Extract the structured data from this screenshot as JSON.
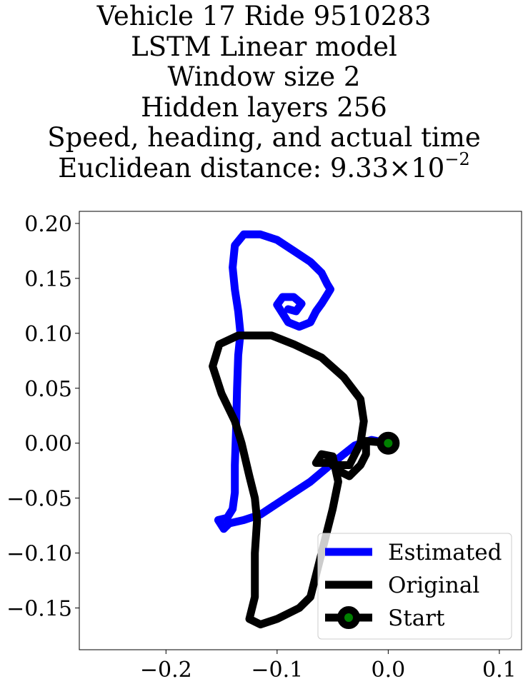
{
  "chart_data": {
    "type": "line",
    "title_lines": [
      "Vehicle 17 Ride 9510283",
      "LSTM Linear model",
      "Window size 2",
      "Hidden layers 256",
      "Speed, heading, and actual time"
    ],
    "title_metric_prefix": "Euclidean distance: ",
    "title_metric_mantissa": "9.33",
    "title_metric_times": "×",
    "title_metric_base": "10",
    "title_metric_exponent": "−2",
    "xlim": [
      -0.278,
      0.12
    ],
    "ylim": [
      -0.188,
      0.211
    ],
    "grid": false,
    "legend_position": "lower right",
    "x_ticks": [
      {
        "value": -0.2,
        "label": "−0.2"
      },
      {
        "value": -0.1,
        "label": "−0.1"
      },
      {
        "value": 0.0,
        "label": "0.0"
      },
      {
        "value": 0.1,
        "label": "0.1"
      }
    ],
    "y_ticks": [
      {
        "value": 0.2,
        "label": "0.20"
      },
      {
        "value": 0.15,
        "label": "0.15"
      },
      {
        "value": 0.1,
        "label": "0.10"
      },
      {
        "value": 0.05,
        "label": "0.05"
      },
      {
        "value": 0.0,
        "label": "0.00"
      },
      {
        "value": -0.05,
        "label": "−0.05"
      },
      {
        "value": -0.1,
        "label": "−0.10"
      },
      {
        "value": -0.15,
        "label": "−0.15"
      }
    ],
    "series": [
      {
        "name": "Estimated",
        "color": "#0000ff",
        "points": [
          [
            0.0,
            0.0
          ],
          [
            -0.015,
            0.003
          ],
          [
            -0.03,
            -0.002
          ],
          [
            -0.05,
            -0.018
          ],
          [
            -0.07,
            -0.035
          ],
          [
            -0.085,
            -0.045
          ],
          [
            -0.1,
            -0.055
          ],
          [
            -0.115,
            -0.065
          ],
          [
            -0.13,
            -0.07
          ],
          [
            -0.143,
            -0.073
          ],
          [
            -0.148,
            -0.078
          ],
          [
            -0.153,
            -0.07
          ],
          [
            -0.145,
            -0.068
          ],
          [
            -0.14,
            -0.06
          ],
          [
            -0.138,
            -0.045
          ],
          [
            -0.138,
            -0.02
          ],
          [
            -0.137,
            0.01
          ],
          [
            -0.136,
            0.05
          ],
          [
            -0.135,
            0.08
          ],
          [
            -0.133,
            0.1
          ],
          [
            -0.135,
            0.12
          ],
          [
            -0.138,
            0.14
          ],
          [
            -0.14,
            0.16
          ],
          [
            -0.138,
            0.18
          ],
          [
            -0.13,
            0.19
          ],
          [
            -0.115,
            0.19
          ],
          [
            -0.1,
            0.185
          ],
          [
            -0.085,
            0.175
          ],
          [
            -0.07,
            0.165
          ],
          [
            -0.06,
            0.155
          ],
          [
            -0.055,
            0.145
          ],
          [
            -0.052,
            0.14
          ],
          [
            -0.055,
            0.135
          ],
          [
            -0.06,
            0.127
          ],
          [
            -0.065,
            0.12
          ],
          [
            -0.07,
            0.11
          ],
          [
            -0.08,
            0.106
          ],
          [
            -0.09,
            0.11
          ],
          [
            -0.095,
            0.118
          ],
          [
            -0.1,
            0.126
          ],
          [
            -0.095,
            0.133
          ],
          [
            -0.085,
            0.133
          ],
          [
            -0.078,
            0.127
          ],
          [
            -0.083,
            0.12
          ],
          [
            -0.09,
            0.122
          ]
        ]
      },
      {
        "name": "Original",
        "color": "#000000",
        "points": [
          [
            0.0,
            0.0
          ],
          [
            -0.02,
            0.002
          ],
          [
            -0.02,
            -0.01
          ],
          [
            -0.025,
            -0.02
          ],
          [
            -0.035,
            -0.03
          ],
          [
            -0.045,
            -0.025
          ],
          [
            -0.05,
            -0.018
          ],
          [
            -0.065,
            -0.018
          ],
          [
            -0.06,
            -0.01
          ],
          [
            -0.05,
            -0.012
          ],
          [
            -0.045,
            -0.035
          ],
          [
            -0.05,
            -0.06
          ],
          [
            -0.055,
            -0.08
          ],
          [
            -0.06,
            -0.1
          ],
          [
            -0.065,
            -0.12
          ],
          [
            -0.07,
            -0.14
          ],
          [
            -0.08,
            -0.15
          ],
          [
            -0.1,
            -0.16
          ],
          [
            -0.115,
            -0.165
          ],
          [
            -0.125,
            -0.16
          ],
          [
            -0.12,
            -0.14
          ],
          [
            -0.12,
            -0.1
          ],
          [
            -0.118,
            -0.07
          ],
          [
            -0.12,
            -0.05
          ],
          [
            -0.125,
            -0.03
          ],
          [
            -0.132,
            0.0
          ],
          [
            -0.138,
            0.02
          ],
          [
            -0.15,
            0.045
          ],
          [
            -0.158,
            0.07
          ],
          [
            -0.152,
            0.09
          ],
          [
            -0.135,
            0.098
          ],
          [
            -0.105,
            0.098
          ],
          [
            -0.085,
            0.09
          ],
          [
            -0.06,
            0.078
          ],
          [
            -0.04,
            0.06
          ],
          [
            -0.025,
            0.04
          ],
          [
            -0.022,
            0.02
          ],
          [
            -0.025,
            0.0
          ],
          [
            -0.035,
            -0.02
          ],
          [
            -0.05,
            -0.02
          ]
        ]
      }
    ],
    "start_marker": {
      "name": "Start",
      "x": 0.0,
      "y": 0.0,
      "fill_color": "#008000",
      "edge_color": "#000000"
    }
  }
}
